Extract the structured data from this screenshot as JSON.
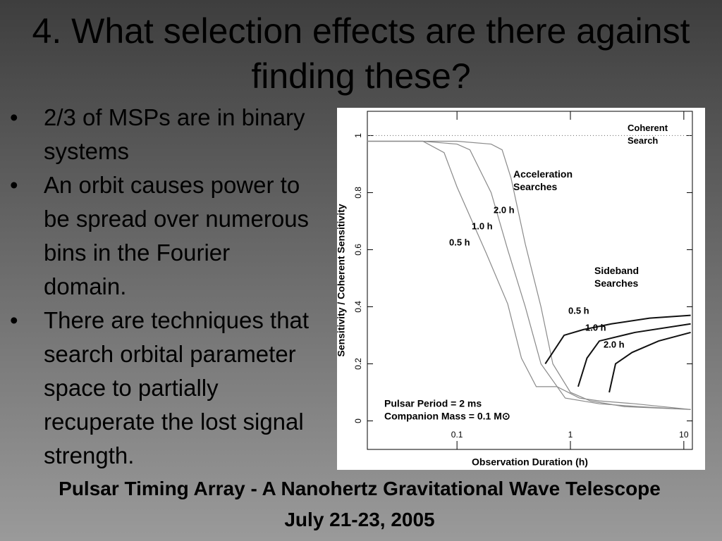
{
  "title": "4. What selection effects are there against finding these?",
  "bullets": [
    "2/3 of MSPs are in binary systems",
    "An orbit causes power to be spread over numerous bins in the Fourier domain.",
    "There are techniques that search orbital parameter space to partially recuperate the lost signal strength."
  ],
  "footer": "Pulsar Timing Array - A Nanohertz Gravitational Wave Telescope July 21-23, 2005",
  "chart_data": {
    "type": "line",
    "x_label": "Observation Duration (h)",
    "y_label": "Sensitivity / Coherent Sensitivity",
    "log_x": true,
    "xlim": [
      0.0162,
      11.9
    ],
    "xticks": [
      0.1,
      1,
      10
    ],
    "ylim": [
      -0.1,
      1.085
    ],
    "yticks": [
      0,
      0.2,
      0.4,
      0.6,
      0.8,
      1
    ],
    "annotations": [
      "Coherent Search",
      "Acceleration Searches",
      "Sideband Searches",
      "Pulsar Period = 2 ms",
      "Companion Mass = 0.1 M⊙"
    ],
    "series": [
      {
        "name": "0.5 h",
        "color": "#8a8a8a",
        "x": [
          0.016,
          0.05,
          0.077,
          0.1,
          0.18,
          0.28,
          0.37,
          0.5,
          0.76,
          1.2,
          1.8,
          3.7,
          11.5
        ],
        "values": [
          0.98,
          0.98,
          0.94,
          0.82,
          0.59,
          0.41,
          0.22,
          0.12,
          0.12,
          0.08,
          0.07,
          0.06,
          0.04
        ]
      },
      {
        "name": "1.0 h",
        "color": "#8a8a8a",
        "x": [
          0.016,
          0.05,
          0.1,
          0.13,
          0.2,
          0.28,
          0.4,
          0.55,
          0.9,
          1.8,
          4,
          11.5
        ],
        "values": [
          0.98,
          0.98,
          0.97,
          0.95,
          0.8,
          0.6,
          0.4,
          0.2,
          0.08,
          0.06,
          0.05,
          0.04
        ]
      },
      {
        "name": "2.0 h",
        "color": "#8a8a8a",
        "x": [
          0.016,
          0.05,
          0.1,
          0.2,
          0.25,
          0.3,
          0.4,
          0.55,
          0.7,
          1.0,
          1.5,
          3,
          11.5
        ],
        "values": [
          0.98,
          0.98,
          0.98,
          0.97,
          0.95,
          0.85,
          0.62,
          0.4,
          0.2,
          0.1,
          0.07,
          0.05,
          0.04
        ]
      },
      {
        "name": "0.5 h",
        "color": "#111111",
        "x": [
          0.6,
          0.88,
          1.3,
          2.3,
          5,
          11.5
        ],
        "values": [
          0.2,
          0.3,
          0.32,
          0.34,
          0.36,
          0.37
        ]
      },
      {
        "name": "1.0 h",
        "color": "#111111",
        "x": [
          1.17,
          1.4,
          1.8,
          3.7,
          11.5
        ],
        "values": [
          0.12,
          0.22,
          0.28,
          0.31,
          0.34
        ]
      },
      {
        "name": "2.0 h",
        "color": "#111111",
        "x": [
          2.2,
          2.5,
          3.5,
          6,
          11.5
        ],
        "values": [
          0.1,
          0.2,
          0.24,
          0.28,
          0.31
        ]
      },
      {
        "name": "Coherent Search",
        "color": "#777777",
        "dash": "1 3",
        "x": [
          0.0162,
          11.9
        ],
        "values": [
          1,
          1
        ]
      }
    ]
  }
}
